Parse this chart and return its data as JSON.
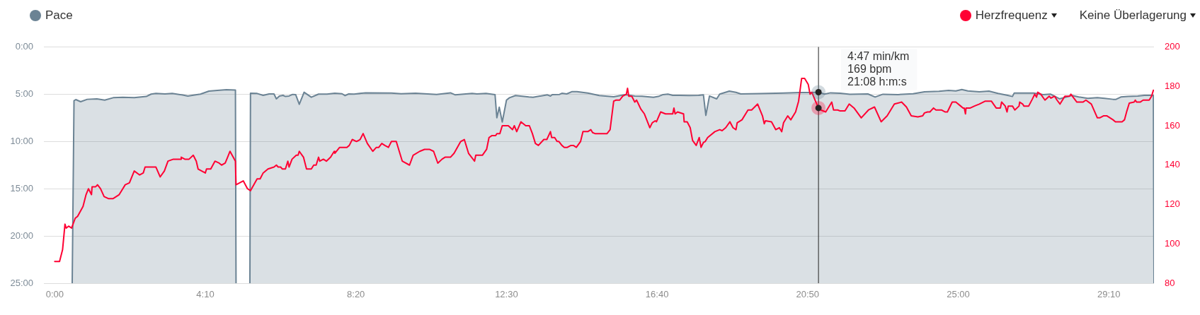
{
  "chart_data": {
    "type": "line",
    "legend": "top",
    "grid": "y",
    "marker": "none",
    "xlim": [
      -18,
      1825
    ],
    "xticks": [
      {
        "value": 0,
        "label": "0:00"
      },
      {
        "value": 250,
        "label": "4:10"
      },
      {
        "value": 500,
        "label": "8:20"
      },
      {
        "value": 750,
        "label": "12:30"
      },
      {
        "value": 1000,
        "label": "16:40"
      },
      {
        "value": 1250,
        "label": "20:50"
      },
      {
        "value": 1500,
        "label": "25:00"
      },
      {
        "value": 1750,
        "label": "29:10"
      }
    ],
    "ylim": [
      25,
      0
    ],
    "yticks": [
      {
        "value": 0,
        "label": "0:00"
      },
      {
        "value": 5,
        "label": "5:00"
      },
      {
        "value": 10,
        "label": "10:00"
      },
      {
        "value": 15,
        "label": "15:00"
      },
      {
        "value": 20,
        "label": "20:00"
      },
      {
        "value": 25,
        "label": "25:00"
      }
    ],
    "y2lim": [
      80,
      200
    ],
    "y2ticks": [
      80,
      100,
      120,
      140,
      160,
      180,
      200
    ],
    "ref_lines": [
      {
        "axis": "x",
        "value": 1268,
        "color": "#222222"
      }
    ],
    "annotations": [
      "Keine Überlagerung",
      "4:47 min/km",
      "169 bpm",
      "21:08 h:m:s"
    ],
    "series": [
      {
        "name": "Pace",
        "type": "area",
        "color": "#6b8394",
        "x": [
          29,
          32,
          35,
          43,
          54,
          70,
          83,
          97,
          113,
          132,
          152,
          160,
          168,
          183,
          195,
          211,
          221,
          234,
          242,
          256,
          270,
          285,
          300,
          301,
          312,
          324,
          325,
          336,
          346,
          356,
          364,
          368,
          373,
          379,
          383,
          389,
          395,
          400,
          406,
          414,
          426,
          438,
          452,
          465,
          477,
          482,
          488,
          497,
          516,
          559,
          575,
          599,
          634,
          657,
          665,
          693,
          701,
          716,
          731,
          734,
          738,
          743,
          750,
          755,
          765,
          787,
          794,
          818,
          823,
          826,
          838,
          842,
          850,
          859,
          867,
          885,
          904,
          928,
          947,
          963,
          975,
          994,
          1002,
          1010,
          1018,
          1026,
          1037,
          1053,
          1069,
          1077,
          1081,
          1087,
          1099,
          1104,
          1120,
          1131,
          1139,
          1171,
          1210,
          1237,
          1257,
          1268,
          1278,
          1288,
          1304,
          1320,
          1350,
          1362,
          1375,
          1400,
          1425,
          1444,
          1468,
          1484,
          1496,
          1506,
          1516,
          1535,
          1551,
          1566,
          1582,
          1590,
          1593,
          1609,
          1625,
          1641,
          1653,
          1661,
          1668,
          1680,
          1688,
          1700,
          1715,
          1731,
          1743,
          1757,
          1762,
          1770,
          1782,
          1798,
          1809,
          1824,
          1825
        ],
        "values": [
          25,
          5.69,
          5.57,
          5.79,
          5.54,
          5.49,
          5.62,
          5.37,
          5.32,
          5.37,
          5.24,
          4.99,
          4.92,
          4.97,
          4.92,
          5.07,
          5.19,
          5.07,
          4.99,
          4.67,
          4.6,
          4.52,
          4.55,
          25,
          null,
          25,
          4.89,
          4.92,
          5.12,
          4.97,
          4.97,
          5.49,
          5.19,
          5.12,
          5.24,
          5.19,
          5.02,
          5.04,
          6.07,
          4.79,
          5.32,
          4.99,
          4.99,
          4.9,
          4.95,
          5.15,
          4.97,
          4.99,
          4.85,
          4.87,
          4.96,
          4.9,
          5.02,
          4.85,
          5.07,
          4.92,
          4.97,
          4.92,
          5.04,
          7.49,
          6.37,
          7.94,
          5.62,
          5.37,
          5.14,
          5.29,
          5.32,
          5.07,
          5.19,
          5.04,
          5.02,
          4.9,
          4.97,
          4.72,
          4.72,
          4.87,
          5.14,
          5.27,
          5.04,
          5.19,
          5.22,
          5.32,
          5.24,
          5.04,
          4.99,
          5.12,
          5.12,
          5.14,
          5.12,
          5.07,
          7.24,
          5.19,
          5.49,
          4.99,
          4.67,
          4.8,
          4.97,
          4.94,
          4.87,
          4.82,
          4.82,
          4.78,
          4.99,
          4.85,
          4.9,
          5.0,
          4.97,
          5.3,
          5.0,
          5.04,
          4.95,
          4.74,
          4.69,
          4.6,
          4.65,
          4.5,
          4.65,
          4.74,
          4.67,
          4.92,
          5.12,
          5.24,
          4.87,
          4.87,
          4.87,
          5.04,
          4.99,
          5.24,
          5.49,
          5.29,
          5.12,
          5.29,
          5.44,
          5.37,
          5.44,
          5.54,
          5.54,
          5.29,
          5.24,
          5.19,
          5.12,
          5.12,
          25
        ]
      },
      {
        "name": "Herzfrequenz",
        "color": "#ff0033",
        "axis": "y2",
        "x": [
          0,
          8,
          13,
          17,
          19,
          23,
          28,
          34,
          38,
          47,
          52,
          56,
          61,
          62,
          68,
          71,
          76,
          82,
          89,
          97,
          107,
          111,
          117,
          124,
          132,
          141,
          147,
          150,
          168,
          175,
          182,
          188,
          197,
          209,
          210,
          216,
          223,
          230,
          235,
          238,
          250,
          252,
          259,
          266,
          273,
          277,
          283,
          287,
          291,
          300,
          301,
          313,
          320,
          325,
          336,
          341,
          346,
          354,
          364,
          368,
          371,
          375,
          378,
          383,
          387,
          389,
          394,
          401,
          404,
          406,
          413,
          418,
          426,
          430,
          434,
          438,
          440,
          446,
          451,
          458,
          464,
          465,
          473,
          485,
          489,
          494,
          501,
          507,
          512,
          519,
          528,
          534,
          538,
          543,
          548,
          554,
          559,
          567,
          577,
          589,
          595,
          606,
          614,
          622,
          629,
          636,
          643,
          648,
          657,
          663,
          674,
          680,
          687,
          697,
          699,
          710,
          717,
          721,
          726,
          732,
          734,
          739,
          743,
          753,
          760,
          763,
          767,
          774,
          782,
          788,
          793,
          798,
          803,
          812,
          817,
          823,
          825,
          830,
          834,
          837,
          842,
          846,
          851,
          857,
          861,
          866,
          873,
          877,
          885,
          890,
          893,
          897,
          917,
          922,
          928,
          932,
          938,
          943,
          949,
          951,
          953,
          958,
          963,
          966,
          973,
          979,
          988,
          992,
          997,
          999,
          1006,
          1014,
          1026,
          1028,
          1030,
          1034,
          1044,
          1045,
          1050,
          1055,
          1059,
          1065,
          1070,
          1073,
          1077,
          1080,
          1084,
          1096,
          1104,
          1108,
          1114,
          1121,
          1126,
          1131,
          1133,
          1141,
          1151,
          1157,
          1167,
          1175,
          1178,
          1180,
          1190,
          1197,
          1203,
          1207,
          1210,
          1217,
          1222,
          1230,
          1235,
          1240,
          1245,
          1251,
          1254,
          1257,
          1263,
          1268,
          1272,
          1280,
          1290,
          1293,
          1300,
          1304,
          1312,
          1319,
          1327,
          1339,
          1351,
          1361,
          1372,
          1382,
          1394,
          1406,
          1414,
          1422,
          1433,
          1441,
          1444,
          1449,
          1453,
          1459,
          1463,
          1472,
          1478,
          1482,
          1490,
          1496,
          1504,
          1508,
          1510,
          1512,
          1513,
          1520,
          1527,
          1535,
          1545,
          1555,
          1563,
          1570,
          1572,
          1578,
          1581,
          1583,
          1590,
          1594,
          1601,
          1602,
          1607,
          1609,
          1617,
          1623,
          1627,
          1630,
          1632,
          1637,
          1644,
          1651,
          1654,
          1660,
          1664,
          1669,
          1677,
          1685,
          1687,
          1697,
          1707,
          1712,
          1721,
          1731,
          1735,
          1741,
          1747,
          1757,
          1761,
          1772,
          1776,
          1780,
          1784,
          1792,
          1794,
          1796,
          1802,
          1807,
          1817,
          1821,
          1824
        ],
        "values": [
          91,
          91,
          97,
          110,
          108,
          109,
          108,
          113,
          114,
          119,
          125,
          128,
          125,
          129,
          129,
          130,
          128,
          124,
          123,
          123,
          125,
          127,
          130,
          131,
          137,
          135,
          136,
          139,
          139,
          134,
          137,
          142,
          143,
          143,
          144,
          143,
          143,
          145,
          142,
          138,
          136,
          138,
          138,
          142,
          141,
          140,
          141,
          144,
          147,
          142,
          130,
          132,
          128,
          127,
          133,
          133,
          136,
          138,
          139,
          140,
          139,
          139,
          138,
          138,
          142,
          139,
          143,
          145,
          145,
          147,
          144,
          138,
          138,
          140,
          140,
          144,
          142,
          143,
          142,
          144,
          147,
          146,
          149,
          149,
          150,
          153,
          152,
          153,
          156,
          151,
          147,
          149,
          149,
          151,
          150,
          149,
          152,
          152,
          142,
          140,
          145,
          147,
          148,
          148,
          147,
          141,
          143,
          144,
          144,
          146,
          152,
          153,
          146,
          142,
          145,
          145,
          148,
          154,
          155,
          155,
          156,
          156,
          160,
          160,
          158,
          160,
          157,
          162,
          160,
          160,
          156,
          151,
          150,
          153,
          153,
          157,
          154,
          154,
          152,
          152,
          150,
          149,
          149,
          150,
          150,
          149,
          152,
          157,
          157,
          158,
          156.5,
          156,
          156,
          158,
          172.5,
          173,
          173,
          175,
          176,
          179,
          175,
          175,
          172,
          173,
          168.5,
          166,
          159,
          161.5,
          162.5,
          162,
          167,
          166,
          166,
          169,
          166,
          167,
          166,
          162,
          162,
          159,
          152.5,
          150,
          154,
          149,
          151.5,
          152,
          154,
          157,
          158,
          157.5,
          159,
          162,
          159,
          158,
          161.5,
          163,
          168,
          168,
          171,
          165,
          161,
          162.5,
          162,
          158,
          159,
          157,
          161.5,
          165,
          163,
          167,
          172.5,
          184,
          184,
          181,
          176,
          177,
          172.5,
          169,
          168,
          167,
          172,
          168,
          168,
          167.5,
          167.5,
          171,
          169,
          164,
          168,
          169.5,
          162,
          165,
          171,
          172,
          169.5,
          165,
          164.5,
          165,
          166.5,
          167,
          167,
          169,
          168,
          168,
          167,
          167,
          172,
          172,
          170,
          169,
          169,
          166,
          169,
          169,
          170,
          171,
          172.5,
          172.5,
          169,
          169,
          172,
          170,
          167,
          170,
          170,
          168,
          170,
          172,
          171,
          170,
          170,
          173.5,
          176,
          174.5,
          177,
          176,
          173,
          175,
          174,
          175,
          173,
          171,
          175,
          175,
          176,
          172,
          172,
          173,
          171,
          164,
          164,
          165,
          165,
          163,
          162,
          162,
          163,
          167.5,
          171.5,
          172,
          173,
          172,
          172,
          173,
          173,
          175,
          178
        ]
      }
    ]
  }
}
